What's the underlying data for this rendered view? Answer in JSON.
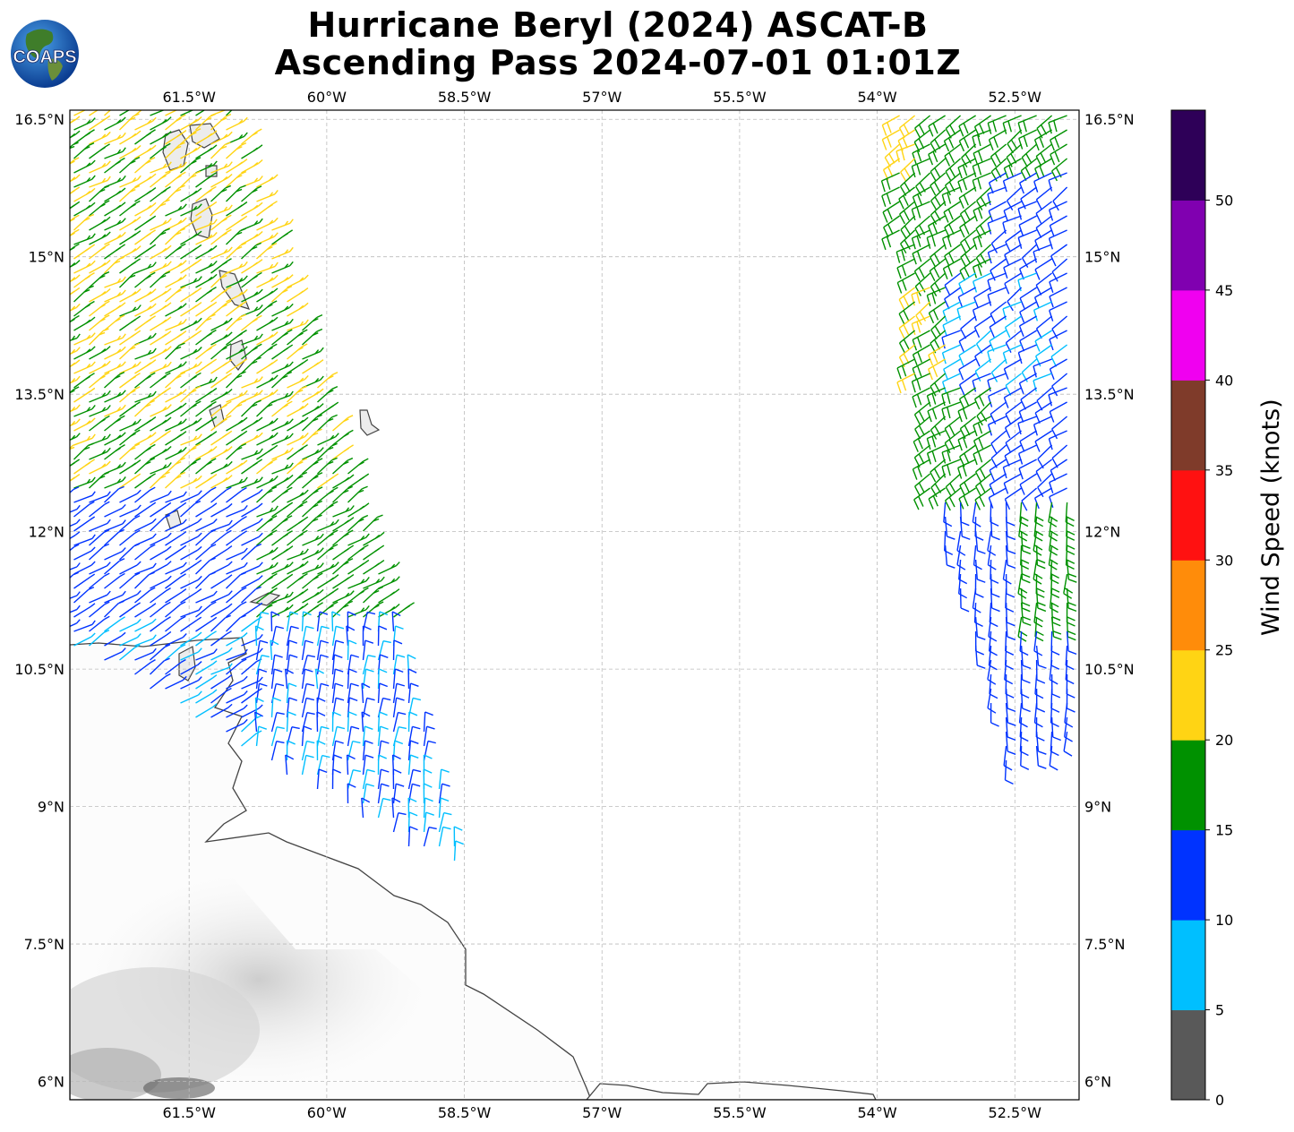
{
  "title_line1": "Hurricane Beryl (2024) ASCAT-B",
  "title_line2": "Ascending Pass 2024-07-01 01:01Z",
  "logo_text": "COAPS",
  "lon_ticks": [
    "61.5°W",
    "60°W",
    "58.5°W",
    "57°W",
    "55.5°W",
    "54°W",
    "52.5°W"
  ],
  "lat_ticks": [
    "16.5°N",
    "15°N",
    "13.5°N",
    "12°N",
    "10.5°N",
    "9°N",
    "7.5°N",
    "6°N"
  ],
  "colorbar": {
    "title": "Wind Speed (knots)",
    "ticks": [
      "0",
      "5",
      "10",
      "15",
      "20",
      "25",
      "30",
      "35",
      "40",
      "45",
      "50"
    ],
    "bins": [
      {
        "range": "0-5",
        "color": "#595959"
      },
      {
        "range": "5-10",
        "color": "#00bfff"
      },
      {
        "range": "10-15",
        "color": "#0033ff"
      },
      {
        "range": "15-20",
        "color": "#009100"
      },
      {
        "range": "20-25",
        "color": "#ffd414"
      },
      {
        "range": "25-30",
        "color": "#ff8c0a"
      },
      {
        "range": "30-35",
        "color": "#ff1111"
      },
      {
        "range": "35-40",
        "color": "#7f3b2a"
      },
      {
        "range": "40-45",
        "color": "#f000f0"
      },
      {
        "range": "45-50",
        "color": "#8000b0"
      },
      {
        "range": "50+",
        "color": "#2e0058"
      }
    ]
  },
  "map_extent": {
    "lon_min": -62.8,
    "lon_max": -51.8,
    "lat_min": 5.8,
    "lat_max": 16.6
  },
  "swaths": [
    {
      "name": "west",
      "edges": [
        [
          -63,
          16.6
        ],
        [
          -61.0,
          16.6
        ],
        [
          -59.0,
          10.2
        ],
        [
          -58.5,
          8.3
        ],
        [
          -59.2,
          8.6
        ],
        [
          -63,
          10.9
        ]
      ]
    },
    {
      "name": "east",
      "edges": [
        [
          -54.0,
          16.6
        ],
        [
          -51.8,
          16.6
        ],
        [
          -51.8,
          9.7
        ],
        [
          -52.6,
          9.5
        ],
        [
          -53.5,
          12.7
        ],
        [
          -53.9,
          16.6
        ]
      ]
    }
  ]
}
